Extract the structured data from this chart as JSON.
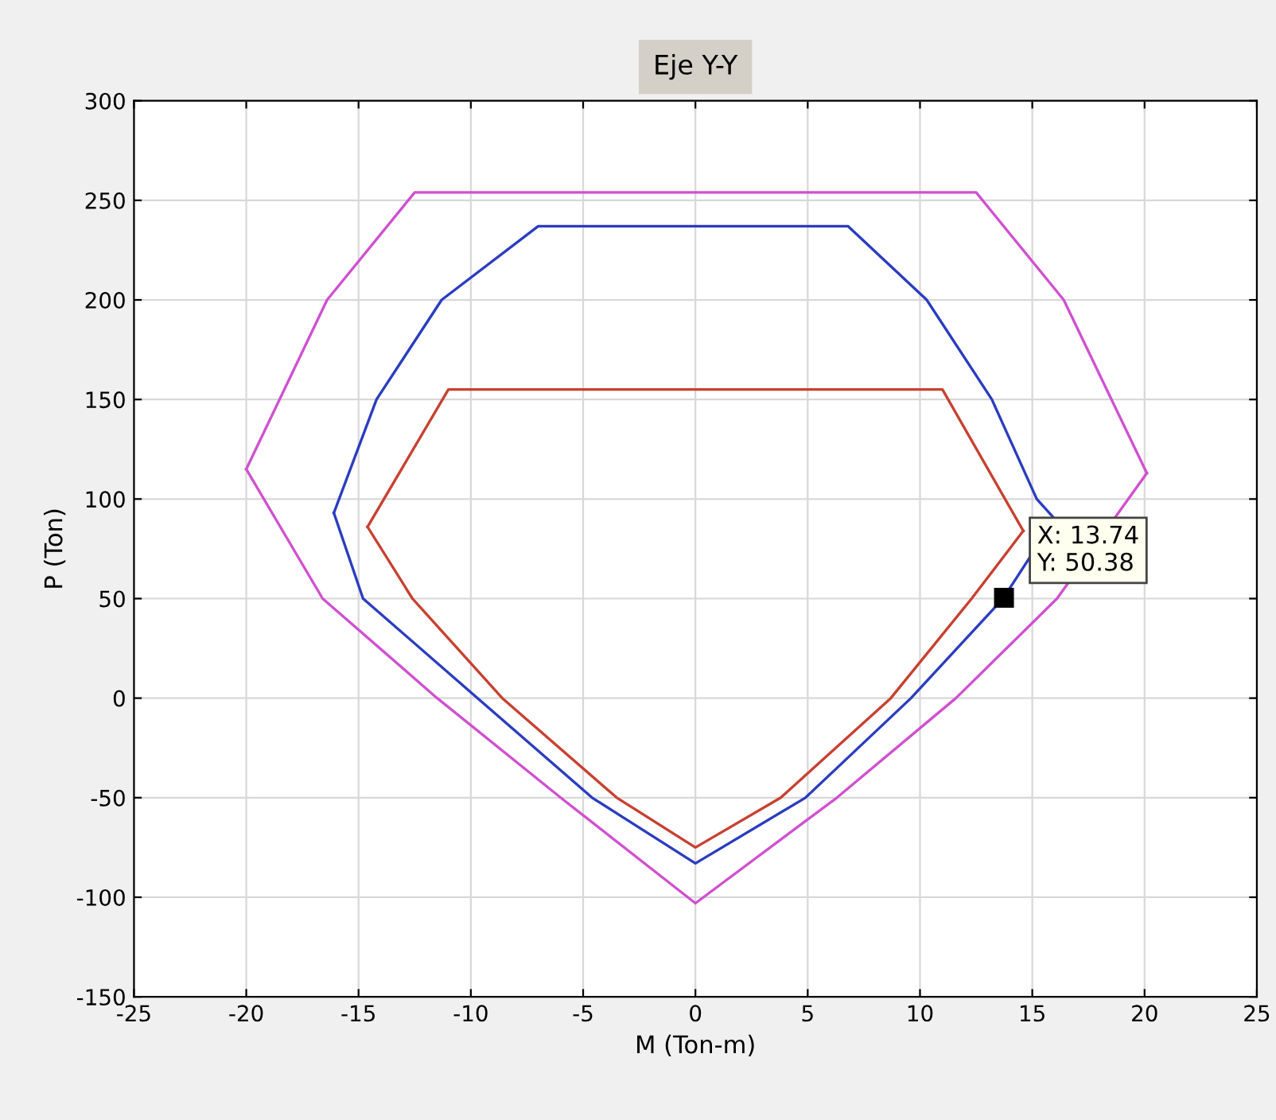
{
  "chart_data": {
    "type": "line",
    "title": "Eje Y-Y",
    "xlabel": "M (Ton-m)",
    "ylabel": "P (Ton)",
    "xlim": [
      -25,
      25
    ],
    "ylim": [
      -150,
      300
    ],
    "xticks": [
      -25,
      -20,
      -15,
      -10,
      -5,
      0,
      5,
      10,
      15,
      20,
      25
    ],
    "yticks": [
      -150,
      -100,
      -50,
      0,
      50,
      100,
      150,
      200,
      250,
      300
    ],
    "grid": true,
    "legend": false,
    "marker": "none",
    "line_style": "solid",
    "series": [
      {
        "color": "#d050d0",
        "x": [
          -20,
          -16.4,
          -12.5,
          12.5,
          16.4,
          20.1
        ],
        "values": [
          115,
          200,
          254,
          254,
          200,
          113
        ]
      },
      {
        "color": "#d050d0",
        "x": [
          -20,
          -16.6,
          -11.5,
          -6.0,
          0,
          6.3,
          11.6,
          16.1,
          20.1
        ],
        "values": [
          115,
          50,
          0,
          -50,
          -103,
          -50,
          0,
          50,
          113
        ]
      },
      {
        "color": "#2a3cc0",
        "x": [
          -16.1,
          -14.2,
          -11.3,
          -7.0,
          6.8,
          10.3,
          13.2,
          15.2,
          16.0
        ],
        "values": [
          93,
          150,
          200,
          237,
          237,
          200,
          150,
          100,
          90
        ]
      },
      {
        "color": "#2a3cc0",
        "x": [
          -16.1,
          -14.8,
          -9.7,
          -4.6,
          0,
          4.9,
          9.6,
          13.7,
          16.0
        ],
        "values": [
          93,
          50,
          0,
          -50,
          -83,
          -50,
          0,
          50,
          90
        ]
      },
      {
        "color": "#c84030",
        "x": [
          -14.6,
          -11.0,
          11.0,
          14.6
        ],
        "values": [
          86,
          155,
          155,
          84
        ]
      },
      {
        "color": "#c84030",
        "x": [
          -14.6,
          -12.6,
          -8.6,
          -3.5,
          0,
          3.8,
          8.7,
          12.3,
          14.6
        ],
        "values": [
          86,
          50,
          0,
          -50,
          -75,
          -50,
          0,
          50,
          84
        ]
      }
    ],
    "annotations": [
      {
        "text": "X: 13.74\nY: 50.38",
        "x": 13.74,
        "y": 50.38
      }
    ]
  }
}
